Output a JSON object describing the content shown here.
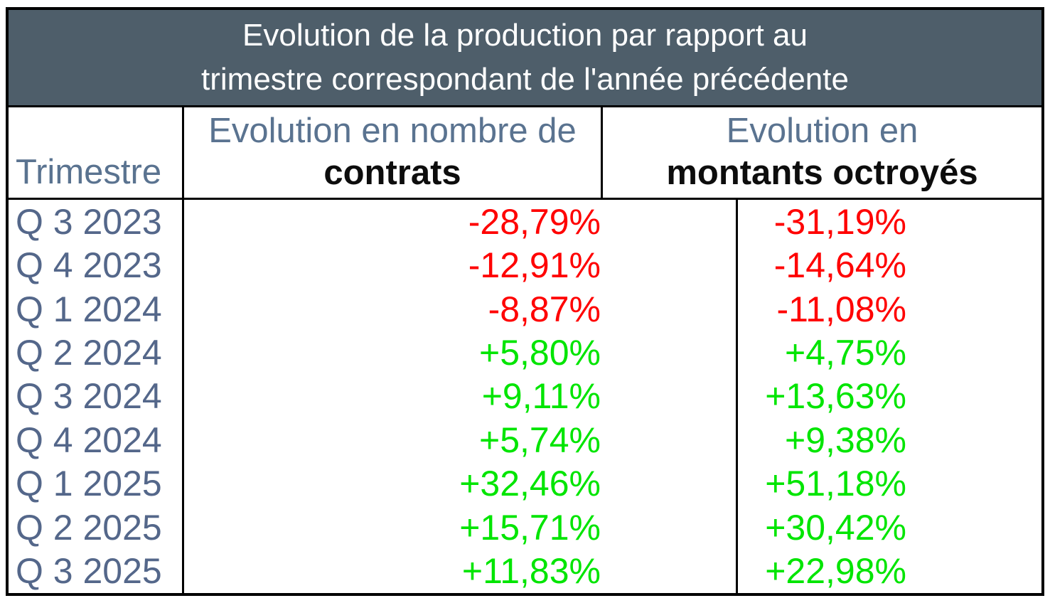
{
  "table": {
    "title_line1": "Evolution de la production par rapport au",
    "title_line2": "trimestre correspondant de l'année précédente",
    "header": {
      "trimestre": "Trimestre",
      "col_contrats_sub": "Evolution en nombre de",
      "col_contrats_main": "contrats",
      "col_montants_sub": "Evolution en",
      "col_montants_main": "montants octroyés"
    },
    "rows": [
      {
        "trimestre": "Q 3 2023",
        "contrats": "-28,79%",
        "montants": "-31,19%"
      },
      {
        "trimestre": "Q 4 2023",
        "contrats": "-12,91%",
        "montants": "-14,64%"
      },
      {
        "trimestre": "Q 1 2024",
        "contrats": "-8,87%",
        "montants": "-11,08%"
      },
      {
        "trimestre": "Q 2 2024",
        "contrats": "+5,80%",
        "montants": "+4,75%"
      },
      {
        "trimestre": "Q 3 2024",
        "contrats": "+9,11%",
        "montants": "+13,63%"
      },
      {
        "trimestre": "Q 4 2024",
        "contrats": "+5,74%",
        "montants": "+9,38%"
      },
      {
        "trimestre": "Q 1 2025",
        "contrats": "+32,46%",
        "montants": "+51,18%"
      },
      {
        "trimestre": "Q 2 2025",
        "contrats": "+15,71%",
        "montants": "+30,42%"
      },
      {
        "trimestre": "Q 3 2025",
        "contrats": "+11,83%",
        "montants": "+22,98%"
      }
    ]
  },
  "colors": {
    "title_background": "#4e5e6a",
    "title_text": "#ffffff",
    "header_sub_text": "#5a7390",
    "row_label_text": "#54678a",
    "negative_value": "#ff0000",
    "positive_value": "#00e500",
    "border": "#000000"
  },
  "chart_data": {
    "type": "table",
    "title": "Evolution de la production par rapport au trimestre correspondant de l'année précédente",
    "columns": [
      "Trimestre",
      "Evolution en nombre de contrats",
      "Evolution en montants octroyés"
    ],
    "categories": [
      "Q 3 2023",
      "Q 4 2023",
      "Q 1 2024",
      "Q 2 2024",
      "Q 3 2024",
      "Q 4 2024",
      "Q 1 2025",
      "Q 2 2025",
      "Q 3 2025"
    ],
    "series": [
      {
        "name": "Evolution en nombre de contrats",
        "values": [
          -28.79,
          -12.91,
          -8.87,
          5.8,
          9.11,
          5.74,
          32.46,
          15.71,
          11.83
        ],
        "unit": "%"
      },
      {
        "name": "Evolution en montants octroyés",
        "values": [
          -31.19,
          -14.64,
          -11.08,
          4.75,
          13.63,
          9.38,
          51.18,
          30.42,
          22.98
        ],
        "unit": "%"
      }
    ],
    "layout_hints": {
      "negative_values_color": "#ff0000",
      "positive_values_color": "#00e500",
      "positive_values_prefixed_with_plus": true,
      "decimal_separator": ","
    }
  }
}
